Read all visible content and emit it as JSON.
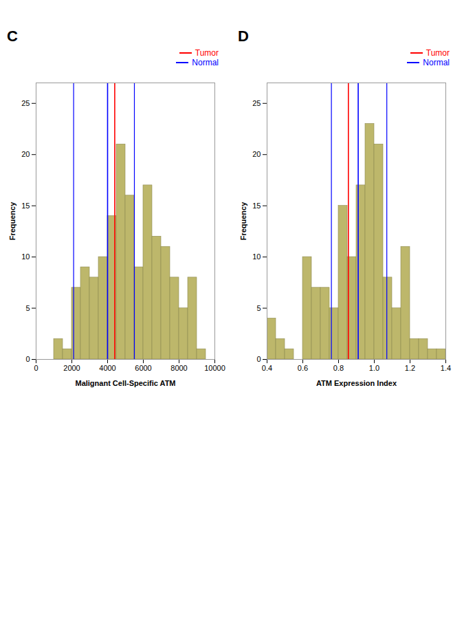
{
  "chart_data": [
    {
      "type": "histogram",
      "title": "C",
      "xlabel": "Malignant Cell-Specific ATM",
      "ylabel": "Frequency",
      "bins": [
        500,
        1000,
        1500,
        2000,
        2500,
        3000,
        3500,
        4000,
        4500,
        5000,
        5500,
        6000,
        6500,
        7000,
        7500,
        8000,
        8500,
        9000,
        9500
      ],
      "values": [
        0,
        2,
        1,
        7,
        9,
        8,
        10,
        14,
        21,
        16,
        9,
        17,
        12,
        11,
        8,
        5,
        8,
        1
      ],
      "color": "#bdb76b",
      "vlines": [
        {
          "name": "Tumor",
          "x": 4400,
          "color": "red",
          "line_style": "solid"
        },
        {
          "name": "Normal",
          "x": 4000,
          "color": "blue",
          "line_style": "solid"
        },
        {
          "x": 2100,
          "color": "blue",
          "line_style": "dashed"
        },
        {
          "x": 5500,
          "color": "blue",
          "line_style": "dashed"
        }
      ],
      "xlim": [
        0,
        10000
      ],
      "xticks": [
        0,
        2000,
        4000,
        6000,
        8000,
        10000
      ],
      "ylim": [
        0,
        27
      ],
      "yticks": [
        0,
        5,
        10,
        15,
        20,
        25
      ],
      "grid": false,
      "legend": "upper right"
    },
    {
      "type": "histogram",
      "title": "D",
      "xlabel": "ATM Expression Index",
      "ylabel": "Frequency",
      "bins": [
        0.4,
        0.45,
        0.5,
        0.55,
        0.6,
        0.65,
        0.7,
        0.75,
        0.8,
        0.85,
        0.9,
        0.95,
        1.0,
        1.05,
        1.1,
        1.15,
        1.2,
        1.25,
        1.3,
        1.35,
        1.4
      ],
      "values": [
        4,
        2,
        1,
        0,
        10,
        7,
        7,
        5,
        15,
        10,
        17,
        23,
        21,
        8,
        5,
        11,
        2,
        2,
        1,
        1
      ],
      "color": "#bdb76b",
      "vlines": [
        {
          "name": "Tumor",
          "x": 0.855,
          "color": "red",
          "line_style": "solid"
        },
        {
          "name": "Normal",
          "x": 0.91,
          "color": "blue",
          "line_style": "solid"
        },
        {
          "x": 0.76,
          "color": "blue",
          "line_style": "dashed"
        },
        {
          "x": 1.07,
          "color": "blue",
          "line_style": "dashed"
        }
      ],
      "xlim": [
        0.4,
        1.4
      ],
      "xticks": [
        0.4,
        0.6,
        0.8,
        {
          "value": 1.0,
          "label": "1.0"
        },
        1.2,
        1.4
      ],
      "ylim": [
        0,
        27
      ],
      "yticks": [
        0,
        5,
        10,
        15,
        20,
        25
      ],
      "grid": false,
      "legend": "upper right"
    }
  ]
}
